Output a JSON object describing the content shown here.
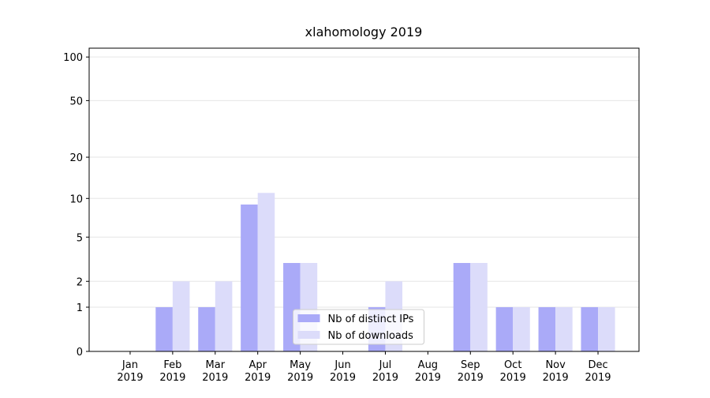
{
  "chart_data": {
    "type": "bar",
    "title": "xlahomology 2019",
    "categories": [
      "Jan 2019",
      "Feb 2019",
      "Mar 2019",
      "Apr 2019",
      "May 2019",
      "Jun 2019",
      "Jul 2019",
      "Aug 2019",
      "Sep 2019",
      "Oct 2019",
      "Nov 2019",
      "Dec 2019"
    ],
    "series": [
      {
        "name": "Nb of distinct IPs",
        "color": "#aaaaf8",
        "values": [
          0,
          1,
          1,
          9,
          3,
          0,
          1,
          0,
          3,
          1,
          1,
          1
        ]
      },
      {
        "name": "Nb of downloads",
        "color": "#dcdcfa",
        "values": [
          0,
          2,
          2,
          11,
          3,
          0,
          2,
          0,
          3,
          1,
          1,
          1
        ]
      }
    ],
    "yscale": "log1p",
    "ylim": [
      0,
      115
    ],
    "yticks": [
      0,
      1,
      2,
      5,
      10,
      20,
      50,
      100
    ],
    "grid": true,
    "legend": "lower center"
  }
}
